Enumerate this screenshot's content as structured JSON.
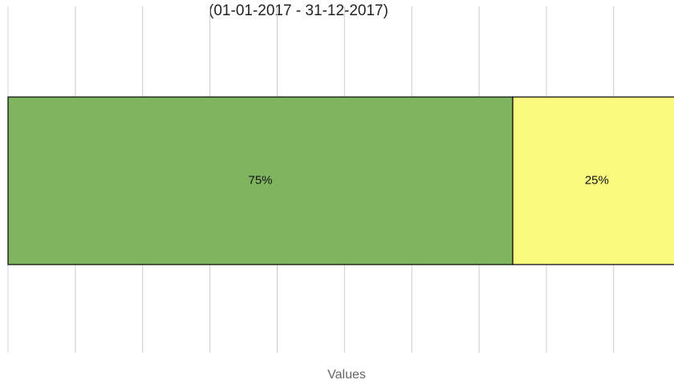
{
  "chart_data": {
    "type": "stacked-bar-horizontal",
    "subtitle": "(01-01-2017 - 31-12-2017)",
    "x_label": "Values",
    "categories": [
      null
    ],
    "series": [
      {
        "color": "#7fb55f",
        "values": [
          75
        ],
        "value_labels": [
          "75%"
        ]
      },
      {
        "color": "#fafa80",
        "values": [
          25
        ],
        "value_labels": [
          "25%"
        ]
      }
    ],
    "xlim": [
      0,
      100
    ],
    "xticks": [
      0,
      10,
      20,
      30,
      40,
      50,
      60,
      70,
      80,
      90,
      100
    ],
    "grid": true
  }
}
